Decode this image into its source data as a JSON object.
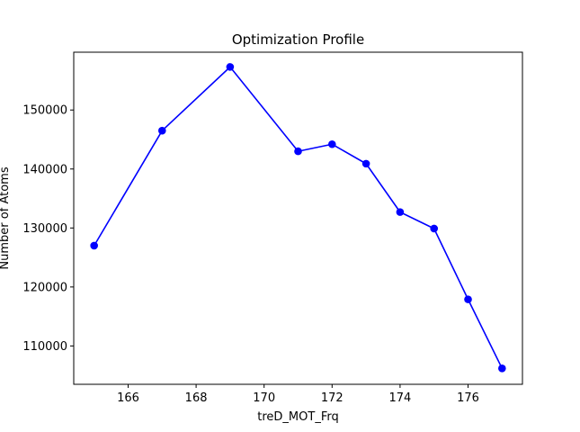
{
  "chart_data": {
    "type": "line",
    "title": "Optimization Profile",
    "xlabel": "treD_MOT_Frq",
    "ylabel": "Number of Atoms",
    "xlim": [
      164.4,
      177.6
    ],
    "ylim": [
      103500,
      159800
    ],
    "xticks": [
      166,
      168,
      170,
      172,
      174,
      176
    ],
    "yticks": [
      110000,
      120000,
      130000,
      140000,
      150000
    ],
    "grid": false,
    "series": [
      {
        "color": "#0000ff",
        "marker": "circle",
        "x": [
          165,
          167,
          169,
          171,
          172,
          173,
          174,
          175,
          176,
          177
        ],
        "y": [
          127000,
          146500,
          157300,
          143000,
          144200,
          140900,
          132700,
          129900,
          117900,
          106200
        ]
      }
    ]
  }
}
